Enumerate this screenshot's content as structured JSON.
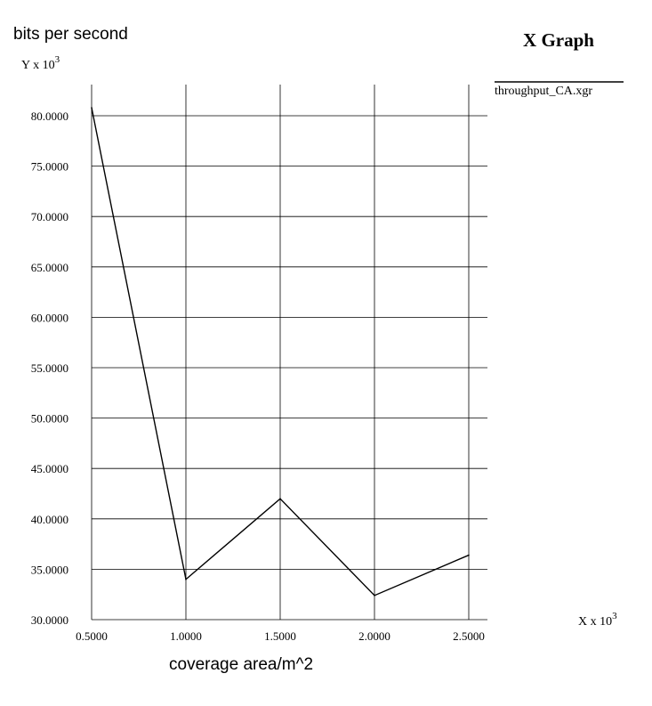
{
  "chart_data": {
    "type": "line",
    "title": "X Graph",
    "ylabel": "bits per second",
    "xlabel": "coverage area/m^2",
    "y_scale_label": "Y x 10",
    "x_scale_label": "X x 10",
    "scale_exponent": "3",
    "x_ticks": [
      "0.5000",
      "1.0000",
      "1.5000",
      "2.0000",
      "2.5000"
    ],
    "y_ticks": [
      "30.0000",
      "35.0000",
      "40.0000",
      "45.0000",
      "50.0000",
      "55.0000",
      "60.0000",
      "65.0000",
      "70.0000",
      "75.0000",
      "80.0000"
    ],
    "xlim": [
      0.5,
      2.5
    ],
    "ylim": [
      30,
      80
    ],
    "grid": true,
    "legend_position": "right",
    "series": [
      {
        "name": "throughput_CA.xgr",
        "color": "#000000",
        "x": [
          0.5,
          1.0,
          1.5,
          2.0,
          2.5
        ],
        "y": [
          80.8,
          34.0,
          42.0,
          32.4,
          36.4
        ]
      }
    ]
  }
}
